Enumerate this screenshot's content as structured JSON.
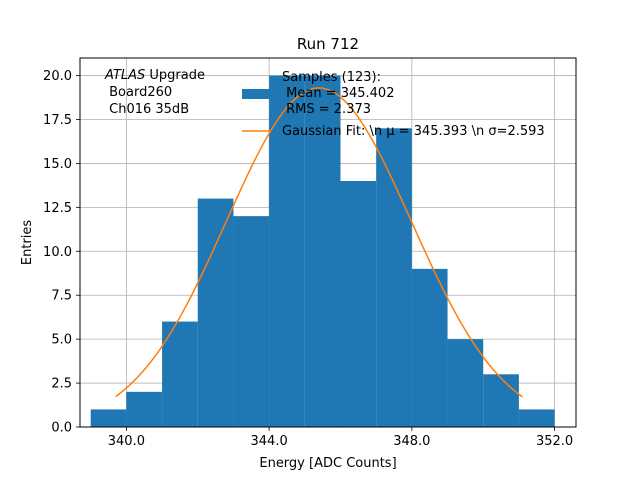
{
  "chart_data": {
    "type": "bar",
    "title": "Run 712",
    "xlabel": "Energy [ADC Counts]",
    "ylabel": "Entries",
    "xlim": [
      338.7,
      352.6
    ],
    "ylim": [
      0,
      21
    ],
    "grid": true,
    "x_ticks": [
      340,
      344,
      348,
      352
    ],
    "x_tick_labels": [
      "340.0",
      "344.0",
      "348.0",
      "352.0"
    ],
    "y_ticks": [
      0,
      2.5,
      5,
      7.5,
      10,
      12.5,
      15,
      17.5,
      20
    ],
    "y_tick_labels": [
      "0.0",
      "2.5",
      "5.0",
      "7.5",
      "10.0",
      "12.5",
      "15.0",
      "17.5",
      "20.0"
    ],
    "bins": [
      {
        "start": 339.0,
        "end": 340.0,
        "count": 1
      },
      {
        "start": 340.0,
        "end": 341.0,
        "count": 2
      },
      {
        "start": 341.0,
        "end": 342.0,
        "count": 6
      },
      {
        "start": 342.0,
        "end": 343.0,
        "count": 13
      },
      {
        "start": 343.0,
        "end": 344.0,
        "count": 12
      },
      {
        "start": 344.0,
        "end": 345.0,
        "count": 20
      },
      {
        "start": 345.0,
        "end": 346.0,
        "count": 20
      },
      {
        "start": 346.0,
        "end": 347.0,
        "count": 14
      },
      {
        "start": 347.0,
        "end": 348.0,
        "count": 17
      },
      {
        "start": 348.0,
        "end": 349.0,
        "count": 9
      },
      {
        "start": 349.0,
        "end": 350.0,
        "count": 5
      },
      {
        "start": 350.0,
        "end": 351.0,
        "count": 3
      },
      {
        "start": 351.0,
        "end": 352.0,
        "count": 1
      }
    ],
    "gaussian_fit": {
      "amplitude": 19.3,
      "mu": 345.393,
      "sigma": 2.593,
      "x_range": [
        339.7,
        351.1
      ]
    },
    "colors": {
      "histogram": "#1f77b4",
      "fit": "#ff7f0e",
      "grid": "#b0b0b0"
    },
    "legend": {
      "location": "top-right",
      "entries": [
        {
          "series": "histogram",
          "lines": [
            "Samples (123):",
            " Mean = 345.402",
            " RMS = 2.373"
          ]
        },
        {
          "series": "fit",
          "lines": [
            "Gaussian Fit: \\n μ = 345.393 \\n σ=2.593"
          ]
        }
      ]
    },
    "annotation": {
      "italic": "ATLAS",
      "rest": " Upgrade",
      "lines": [
        " Board260",
        " Ch016 35dB"
      ]
    }
  }
}
